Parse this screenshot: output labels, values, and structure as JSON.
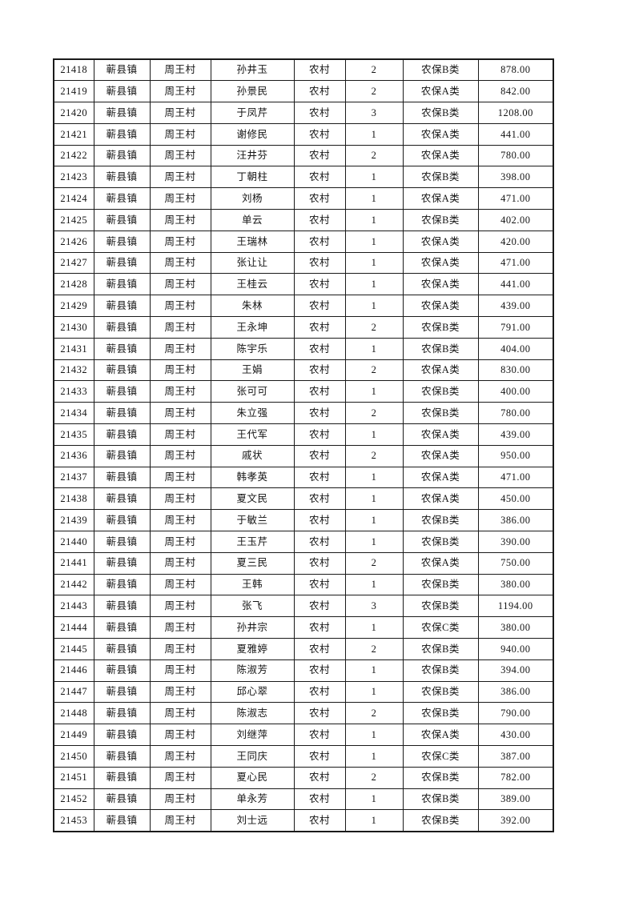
{
  "page": {
    "background_color": "#ffffff",
    "text_color": "#141414",
    "grid_color": "#1a1a1a"
  },
  "table": {
    "column_keys": [
      "record-id",
      "town",
      "village",
      "name",
      "category",
      "person-count",
      "insurance-class",
      "amount"
    ],
    "rows": [
      [
        "21418",
        "蕲县镇",
        "周王村",
        "孙井玉",
        "农村",
        "2",
        "农保B类",
        "878.00"
      ],
      [
        "21419",
        "蕲县镇",
        "周王村",
        "孙景民",
        "农村",
        "2",
        "农保A类",
        "842.00"
      ],
      [
        "21420",
        "蕲县镇",
        "周王村",
        "于凤芹",
        "农村",
        "3",
        "农保B类",
        "1208.00"
      ],
      [
        "21421",
        "蕲县镇",
        "周王村",
        "谢修民",
        "农村",
        "1",
        "农保A类",
        "441.00"
      ],
      [
        "21422",
        "蕲县镇",
        "周王村",
        "汪井芬",
        "农村",
        "2",
        "农保A类",
        "780.00"
      ],
      [
        "21423",
        "蕲县镇",
        "周王村",
        "丁朝柱",
        "农村",
        "1",
        "农保B类",
        "398.00"
      ],
      [
        "21424",
        "蕲县镇",
        "周王村",
        "刘杨",
        "农村",
        "1",
        "农保A类",
        "471.00"
      ],
      [
        "21425",
        "蕲县镇",
        "周王村",
        "单云",
        "农村",
        "1",
        "农保B类",
        "402.00"
      ],
      [
        "21426",
        "蕲县镇",
        "周王村",
        "王瑞林",
        "农村",
        "1",
        "农保A类",
        "420.00"
      ],
      [
        "21427",
        "蕲县镇",
        "周王村",
        "张让让",
        "农村",
        "1",
        "农保A类",
        "471.00"
      ],
      [
        "21428",
        "蕲县镇",
        "周王村",
        "王桂云",
        "农村",
        "1",
        "农保A类",
        "441.00"
      ],
      [
        "21429",
        "蕲县镇",
        "周王村",
        "朱林",
        "农村",
        "1",
        "农保A类",
        "439.00"
      ],
      [
        "21430",
        "蕲县镇",
        "周王村",
        "王永坤",
        "农村",
        "2",
        "农保B类",
        "791.00"
      ],
      [
        "21431",
        "蕲县镇",
        "周王村",
        "陈宇乐",
        "农村",
        "1",
        "农保B类",
        "404.00"
      ],
      [
        "21432",
        "蕲县镇",
        "周王村",
        "王娟",
        "农村",
        "2",
        "农保A类",
        "830.00"
      ],
      [
        "21433",
        "蕲县镇",
        "周王村",
        "张可可",
        "农村",
        "1",
        "农保B类",
        "400.00"
      ],
      [
        "21434",
        "蕲县镇",
        "周王村",
        "朱立强",
        "农村",
        "2",
        "农保B类",
        "780.00"
      ],
      [
        "21435",
        "蕲县镇",
        "周王村",
        "王代军",
        "农村",
        "1",
        "农保A类",
        "439.00"
      ],
      [
        "21436",
        "蕲县镇",
        "周王村",
        "戚状",
        "农村",
        "2",
        "农保A类",
        "950.00"
      ],
      [
        "21437",
        "蕲县镇",
        "周王村",
        "韩孝英",
        "农村",
        "1",
        "农保A类",
        "471.00"
      ],
      [
        "21438",
        "蕲县镇",
        "周王村",
        "夏文民",
        "农村",
        "1",
        "农保A类",
        "450.00"
      ],
      [
        "21439",
        "蕲县镇",
        "周王村",
        "于敏兰",
        "农村",
        "1",
        "农保B类",
        "386.00"
      ],
      [
        "21440",
        "蕲县镇",
        "周王村",
        "王玉芹",
        "农村",
        "1",
        "农保B类",
        "390.00"
      ],
      [
        "21441",
        "蕲县镇",
        "周王村",
        "夏三民",
        "农村",
        "2",
        "农保A类",
        "750.00"
      ],
      [
        "21442",
        "蕲县镇",
        "周王村",
        "王韩",
        "农村",
        "1",
        "农保B类",
        "380.00"
      ],
      [
        "21443",
        "蕲县镇",
        "周王村",
        "张飞",
        "农村",
        "3",
        "农保B类",
        "1194.00"
      ],
      [
        "21444",
        "蕲县镇",
        "周王村",
        "孙井宗",
        "农村",
        "1",
        "农保C类",
        "380.00"
      ],
      [
        "21445",
        "蕲县镇",
        "周王村",
        "夏雅婷",
        "农村",
        "2",
        "农保B类",
        "940.00"
      ],
      [
        "21446",
        "蕲县镇",
        "周王村",
        "陈淑芳",
        "农村",
        "1",
        "农保B类",
        "394.00"
      ],
      [
        "21447",
        "蕲县镇",
        "周王村",
        "邱心翠",
        "农村",
        "1",
        "农保B类",
        "386.00"
      ],
      [
        "21448",
        "蕲县镇",
        "周王村",
        "陈淑志",
        "农村",
        "2",
        "农保B类",
        "790.00"
      ],
      [
        "21449",
        "蕲县镇",
        "周王村",
        "刘继萍",
        "农村",
        "1",
        "农保A类",
        "430.00"
      ],
      [
        "21450",
        "蕲县镇",
        "周王村",
        "王同庆",
        "农村",
        "1",
        "农保C类",
        "387.00"
      ],
      [
        "21451",
        "蕲县镇",
        "周王村",
        "夏心民",
        "农村",
        "2",
        "农保B类",
        "782.00"
      ],
      [
        "21452",
        "蕲县镇",
        "周王村",
        "单永芳",
        "农村",
        "1",
        "农保B类",
        "389.00"
      ],
      [
        "21453",
        "蕲县镇",
        "周王村",
        "刘士远",
        "农村",
        "1",
        "农保B类",
        "392.00"
      ]
    ]
  }
}
